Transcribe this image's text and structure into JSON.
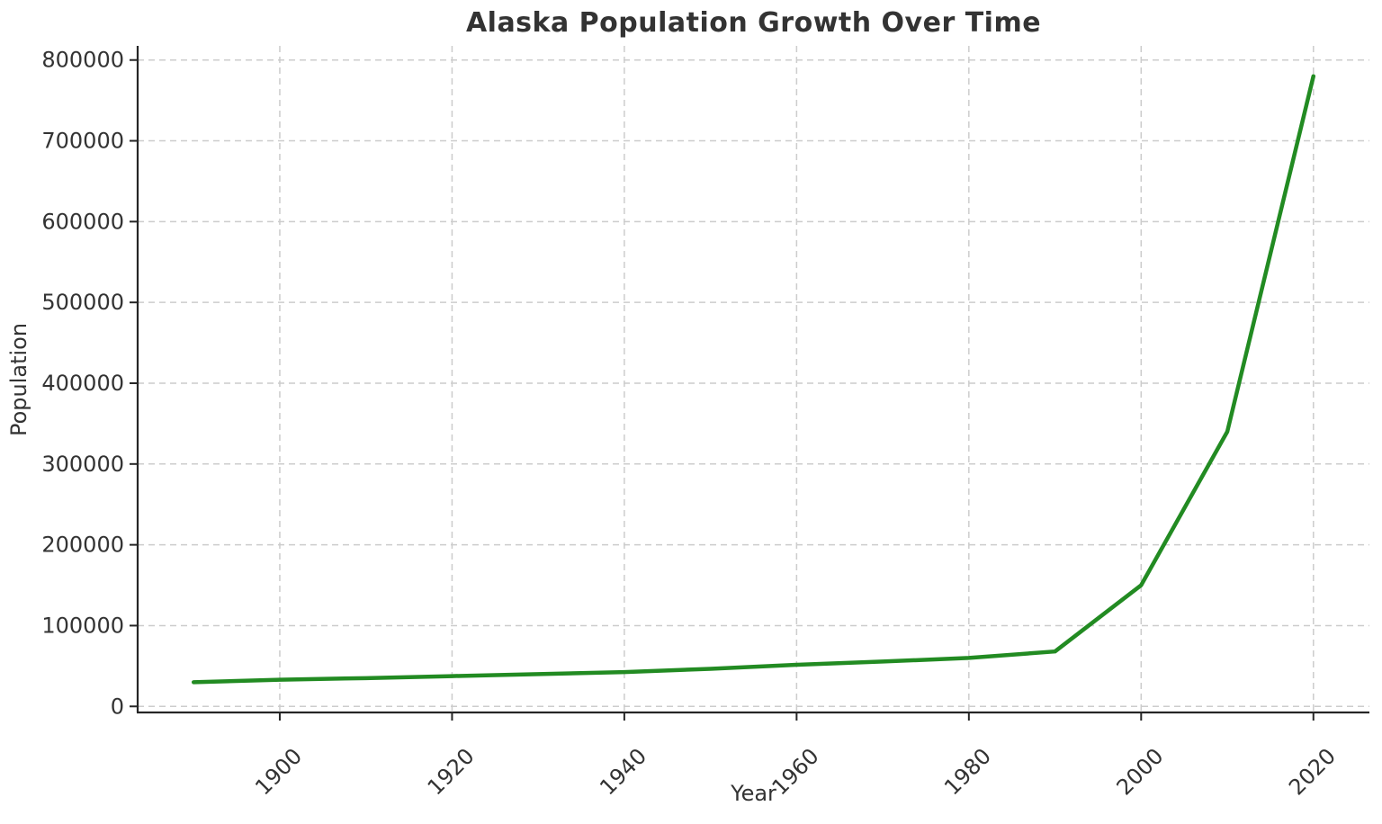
{
  "chart_data": {
    "type": "line",
    "title": "Alaska Population Growth Over Time",
    "xlabel": "Year",
    "ylabel": "Population",
    "x": [
      1890,
      1900,
      1910,
      1920,
      1930,
      1940,
      1950,
      1960,
      1970,
      1980,
      1990,
      2000,
      2010,
      2020
    ],
    "series": [
      {
        "name": "Population",
        "color": "#228B22",
        "values": [
          30000,
          33000,
          35000,
          37500,
          40000,
          42500,
          46500,
          51500,
          55500,
          60000,
          68000,
          150000,
          340000,
          780000
        ]
      }
    ],
    "x_ticks": [
      1900,
      1920,
      1940,
      1960,
      1980,
      2000,
      2020
    ],
    "y_ticks": [
      0,
      100000,
      200000,
      300000,
      400000,
      500000,
      600000,
      700000,
      800000
    ],
    "xlim": [
      1883.5,
      2026.5
    ],
    "ylim": [
      -7500,
      817500
    ],
    "grid": true,
    "grid_style": "dashed",
    "legend_position": "none",
    "colors": {
      "line": "#228B22",
      "grid": "#cccccc",
      "spine": "#262626",
      "tick": "#262626",
      "text": "#333333",
      "background": "#ffffff"
    },
    "tick_label_rotation_x": 45
  }
}
